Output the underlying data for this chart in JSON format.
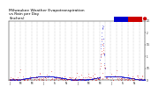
{
  "title": "Milwaukee Weather Evapotranspiration\nvs Rain per Day\n(Inches)",
  "title_fontsize": 3.2,
  "title_color": "#000000",
  "background_color": "#ffffff",
  "legend_blue": "#0000cc",
  "legend_red": "#cc0000",
  "ylim": [
    0,
    2.5
  ],
  "xlim": [
    0,
    730
  ],
  "month_vlines": [
    31,
    59,
    90,
    120,
    151,
    181,
    212,
    243,
    273,
    304,
    334,
    365,
    396,
    424,
    455,
    485,
    516,
    546,
    577,
    608,
    638,
    669,
    699,
    730
  ],
  "xtick_positions": [
    0,
    61,
    120,
    181,
    243,
    304,
    365,
    425,
    486,
    547,
    608,
    669,
    730
  ],
  "xtick_labels": [
    "J",
    "M",
    "M",
    "J",
    "S",
    "N",
    "J",
    "M",
    "M",
    "J",
    "S",
    "N",
    ""
  ],
  "ytick_positions": [
    0.0,
    0.5,
    1.0,
    1.5,
    2.0,
    2.5
  ],
  "ytick_labels": [
    "0",
    "0.5",
    "1",
    "1.5",
    "2",
    "2.5"
  ]
}
